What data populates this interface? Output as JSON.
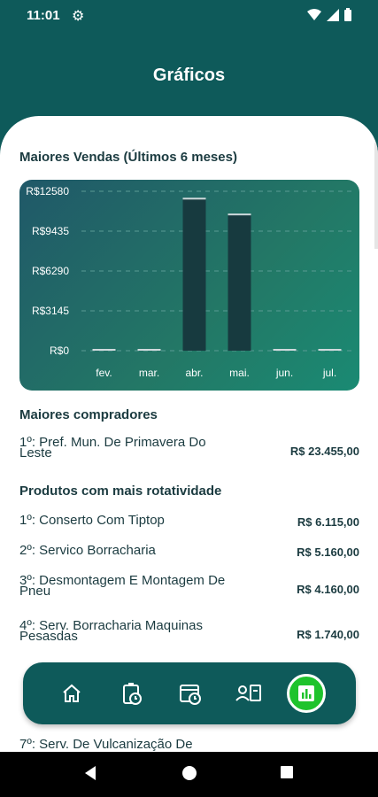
{
  "status_bar": {
    "time": "11:01"
  },
  "header": {
    "title": "Gráficos"
  },
  "sales_section": {
    "title": "Maiores Vendas (Últimos 6 meses)"
  },
  "chart_data": {
    "type": "bar",
    "title": "Maiores Vendas (Últimos 6 meses)",
    "categories": [
      "fev.",
      "mar.",
      "abr.",
      "mai.",
      "jun.",
      "jul."
    ],
    "values": [
      0,
      0,
      12000,
      10750,
      0,
      0
    ],
    "yticks": [
      "R$0",
      "R$3145",
      "R$6290",
      "R$9435",
      "R$12580"
    ],
    "ytick_values": [
      0,
      3145,
      6290,
      9435,
      12580
    ],
    "ylim": [
      0,
      12580
    ],
    "grid": true,
    "colors": {
      "bar": "#173a3f",
      "bar_cap": "#cfd9dc",
      "axis_text": "#ffffff",
      "grid": "#5a9b94"
    }
  },
  "buyers_section": {
    "title": "Maiores compradores",
    "items": [
      {
        "rank_name": "1º: Pref. Mun. De Primavera Do Leste",
        "value": "R$ 23.455,00"
      }
    ]
  },
  "products_section": {
    "title": "Produtos com mais rotatividade",
    "items": [
      {
        "rank_name": "1º: Conserto Com Tiptop",
        "value": "R$ 6.115,00"
      },
      {
        "rank_name": "2º: Servico Borracharia",
        "value": "R$ 5.160,00"
      },
      {
        "rank_name": "3º: Desmontagem E Montagem De Pneu",
        "value": "R$ 4.160,00"
      },
      {
        "rank_name": "4º: Serv. Borracharia Maquinas Pesasdas",
        "value": "R$ 1.740,00"
      },
      {
        "rank_name": "7º: Serv. De Vulcanização De",
        "value": ""
      }
    ]
  },
  "bottom_nav": {
    "items": [
      "home-icon",
      "clipboard-clock-icon",
      "calendar-clock-icon",
      "person-card-icon",
      "bar-chart-icon"
    ],
    "active": "bar-chart-icon"
  }
}
